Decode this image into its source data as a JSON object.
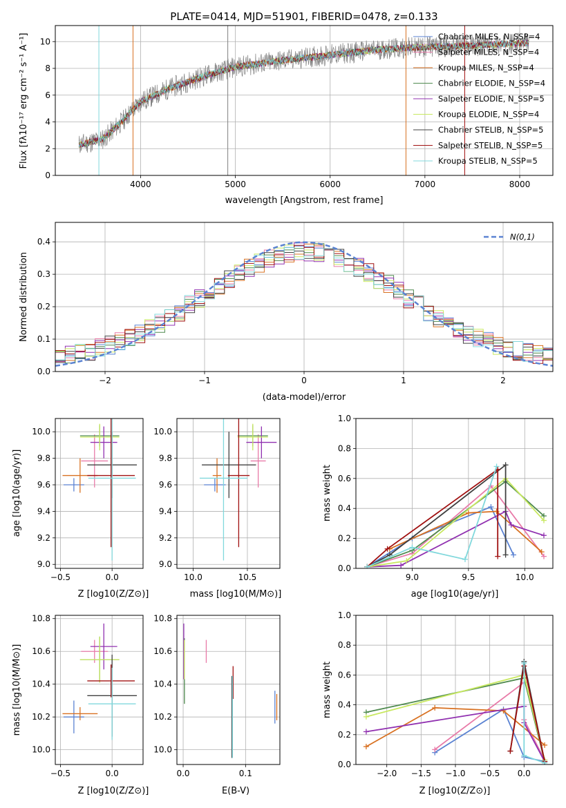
{
  "colors": {
    "chabrier_miles": "#5a82d2",
    "salpeter_miles": "#e87aa8",
    "kroupa_miles": "#d87020",
    "chabrier_elodie": "#4f8a4f",
    "salpeter_elodie": "#9030b0",
    "kroupa_elodie": "#c8e860",
    "chabrier_stelib": "#404040",
    "salpeter_stelib": "#a01010",
    "kroupa_stelib": "#80d8dc",
    "spectrum": "#808080",
    "gaussian": "#5a82d2"
  },
  "chart_data": [
    {
      "id": "spectrum",
      "type": "line",
      "title": "PLATE=0414, MJD=51901, FIBERID=0478, z=0.133",
      "xlabel": "wavelength [Angstrom, rest frame]",
      "ylabel": "Flux [fλ10⁻¹⁷ erg cm⁻² s⁻¹ A⁻¹]",
      "xlim": [
        3100,
        8350
      ],
      "ylim": [
        0,
        11.2
      ],
      "xticks": [
        4000,
        5000,
        6000,
        7000,
        8000
      ],
      "yticks": [
        0,
        2,
        4,
        6,
        8,
        10
      ],
      "x_range_data": [
        3350,
        8100
      ],
      "continuum": [
        [
          3350,
          2.3
        ],
        [
          3600,
          2.7
        ],
        [
          3800,
          4.0
        ],
        [
          4000,
          5.5
        ],
        [
          4300,
          6.5
        ],
        [
          4700,
          7.5
        ],
        [
          5000,
          8.1
        ],
        [
          5500,
          8.6
        ],
        [
          6000,
          9.0
        ],
        [
          6500,
          9.4
        ],
        [
          7000,
          9.6
        ],
        [
          7500,
          9.7
        ],
        [
          8100,
          9.9
        ]
      ],
      "legend": [
        "Chabrier MILES, N_SSP=4",
        "Salpeter MILES, N_SSP=4",
        "Kroupa MILES, N_SSP=4",
        "Chabrier ELODIE, N_SSP=4",
        "Salpeter ELODIE, N_SSP=5",
        "Kroupa ELODIE, N_SSP=4",
        "Chabrier STELIB, N_SSP=5",
        "Salpeter STELIB, N_SSP=5",
        "Kroupa STELIB, N_SSP=5"
      ],
      "legend_position": "top-right"
    },
    {
      "id": "residuals",
      "type": "histogram",
      "xlabel": "(data-model)/error",
      "ylabel": "Normed distribution",
      "xlim": [
        -2.5,
        2.5
      ],
      "ylim": [
        0,
        0.46
      ],
      "xticks": [
        -2,
        -1,
        0,
        1,
        2
      ],
      "yticks": [
        0.0,
        0.1,
        0.2,
        0.3,
        0.4
      ],
      "bin_width": 0.1,
      "legend": [
        "N(0,1)"
      ],
      "legend_position": "top-right"
    },
    {
      "id": "age_vs_Z",
      "type": "errorbar",
      "xlabel": "Z [log10(Z/Z⊙)]",
      "ylabel": "age  [log10(age/yr)]",
      "xlim": [
        -0.55,
        0.3
      ],
      "ylim": [
        8.97,
        10.1
      ],
      "xticks": [
        -0.5,
        0.0
      ],
      "yticks": [
        9.0,
        9.2,
        9.4,
        9.6,
        9.8,
        10.0
      ],
      "points": [
        {
          "model": "chabrier_miles",
          "x": -0.37,
          "xerr": 0.1,
          "y": 9.6,
          "yerr": 0.05
        },
        {
          "model": "salpeter_miles",
          "x": -0.17,
          "xerr": 0.13,
          "y": 9.78,
          "yerr": 0.2
        },
        {
          "model": "kroupa_miles",
          "x": -0.31,
          "xerr": 0.17,
          "y": 9.67,
          "yerr": 0.13
        },
        {
          "model": "chabrier_elodie",
          "x": -0.12,
          "xerr": 0.19,
          "y": 9.97,
          "yerr": 0.08
        },
        {
          "model": "salpeter_elodie",
          "x": -0.08,
          "xerr": 0.13,
          "y": 9.92,
          "yerr": 0.12
        },
        {
          "model": "kroupa_elodie",
          "x": -0.12,
          "xerr": 0.19,
          "y": 9.96,
          "yerr": 0.1
        },
        {
          "model": "chabrier_stelib",
          "x": 0.0,
          "xerr": 0.24,
          "y": 9.75,
          "yerr": 0.25
        },
        {
          "model": "salpeter_stelib",
          "x": -0.01,
          "xerr": 0.23,
          "y": 9.67,
          "yerr": 0.54
        },
        {
          "model": "kroupa_stelib",
          "x": 0.0,
          "xerr": 0.23,
          "y": 9.65,
          "yerr": 0.62
        }
      ]
    },
    {
      "id": "age_vs_mass",
      "type": "errorbar",
      "xlabel": "mass [log10(M/M⊙)]",
      "ylabel": "",
      "xlim": [
        9.85,
        10.8
      ],
      "ylim": [
        8.97,
        10.1
      ],
      "xticks": [
        10.0,
        10.5
      ],
      "yticks": [
        9.0,
        9.2,
        9.4,
        9.6,
        9.8,
        10.0
      ],
      "points": [
        {
          "model": "chabrier_miles",
          "x": 10.2,
          "xerr": 0.1,
          "y": 9.6,
          "yerr": 0.05
        },
        {
          "model": "salpeter_miles",
          "x": 10.6,
          "xerr": 0.07,
          "y": 9.78,
          "yerr": 0.2
        },
        {
          "model": "kroupa_miles",
          "x": 10.22,
          "xerr": 0.04,
          "y": 9.67,
          "yerr": 0.13
        },
        {
          "model": "chabrier_elodie",
          "x": 10.55,
          "xerr": 0.14,
          "y": 9.97,
          "yerr": 0.08
        },
        {
          "model": "salpeter_elodie",
          "x": 10.63,
          "xerr": 0.14,
          "y": 9.92,
          "yerr": 0.12
        },
        {
          "model": "kroupa_elodie",
          "x": 10.55,
          "xerr": 0.14,
          "y": 9.96,
          "yerr": 0.1
        },
        {
          "model": "chabrier_stelib",
          "x": 10.33,
          "xerr": 0.25,
          "y": 9.75,
          "yerr": 0.25
        },
        {
          "model": "salpeter_stelib",
          "x": 10.42,
          "xerr": 0.1,
          "y": 9.67,
          "yerr": 0.54
        },
        {
          "model": "kroupa_stelib",
          "x": 10.28,
          "xerr": 0.22,
          "y": 9.65,
          "yerr": 0.62
        }
      ]
    },
    {
      "id": "weight_vs_age",
      "type": "line",
      "xlabel": "age  [log10(age/yr)]",
      "ylabel": "mass weight",
      "xlim": [
        8.5,
        10.25
      ],
      "ylim": [
        0,
        1.0
      ],
      "xticks": [
        9.0,
        9.5,
        10.0
      ],
      "yticks": [
        0.0,
        0.2,
        0.4,
        0.6,
        0.8,
        1.0
      ],
      "series": [
        {
          "model": "chabrier_miles",
          "x": [
            8.6,
            9.0,
            9.7,
            9.9
          ],
          "y": [
            0.01,
            0.2,
            0.41,
            0.09
          ]
        },
        {
          "model": "salpeter_miles",
          "x": [
            8.6,
            9.0,
            9.7,
            10.17
          ],
          "y": [
            0.01,
            0.1,
            0.55,
            0.08
          ]
        },
        {
          "model": "kroupa_miles",
          "x": [
            8.8,
            9.5,
            9.75,
            10.15
          ],
          "y": [
            0.13,
            0.37,
            0.38,
            0.11
          ]
        },
        {
          "model": "chabrier_elodie",
          "x": [
            8.6,
            9.0,
            9.83,
            10.17
          ],
          "y": [
            0.01,
            0.12,
            0.58,
            0.35
          ]
        },
        {
          "model": "salpeter_elodie",
          "x": [
            8.6,
            8.9,
            9.83,
            9.88,
            10.17
          ],
          "y": [
            0.01,
            0.02,
            0.38,
            0.29,
            0.22
          ]
        },
        {
          "model": "kroupa_elodie",
          "x": [
            8.6,
            8.95,
            9.83,
            10.17
          ],
          "y": [
            0.01,
            0.05,
            0.6,
            0.32
          ]
        },
        {
          "model": "chabrier_stelib",
          "x": [
            8.6,
            8.8,
            9.83,
            9.83
          ],
          "y": [
            0.01,
            0.09,
            0.69,
            0.09
          ]
        },
        {
          "model": "salpeter_stelib",
          "x": [
            8.6,
            8.78,
            9.76,
            9.76
          ],
          "y": [
            0.01,
            0.13,
            0.66,
            0.08
          ]
        },
        {
          "model": "kroupa_stelib",
          "x": [
            8.6,
            9.0,
            9.47,
            9.75
          ],
          "y": [
            0.01,
            0.14,
            0.06,
            0.68
          ]
        }
      ]
    },
    {
      "id": "mass_vs_Z",
      "type": "errorbar",
      "xlabel": "Z [log10(Z/Z⊙)]",
      "ylabel": "mass [log10(M/M⊙)]",
      "xlim": [
        -0.55,
        0.3
      ],
      "ylim": [
        9.91,
        10.82
      ],
      "xticks": [
        -0.5,
        0.0
      ],
      "yticks": [
        10.0,
        10.2,
        10.4,
        10.6,
        10.8
      ],
      "points": [
        {
          "model": "chabrier_miles",
          "x": -0.37,
          "xerr": 0.1,
          "y": 10.2,
          "yerr": 0.1
        },
        {
          "model": "salpeter_miles",
          "x": -0.17,
          "xerr": 0.13,
          "y": 10.6,
          "yerr": 0.07
        },
        {
          "model": "kroupa_miles",
          "x": -0.31,
          "xerr": 0.17,
          "y": 10.22,
          "yerr": 0.04
        },
        {
          "model": "chabrier_elodie",
          "x": -0.12,
          "xerr": 0.19,
          "y": 10.55,
          "yerr": 0.14
        },
        {
          "model": "salpeter_elodie",
          "x": -0.08,
          "xerr": 0.13,
          "y": 10.63,
          "yerr": 0.14
        },
        {
          "model": "kroupa_elodie",
          "x": -0.12,
          "xerr": 0.19,
          "y": 10.55,
          "yerr": 0.14
        },
        {
          "model": "chabrier_stelib",
          "x": 0.0,
          "xerr": 0.24,
          "y": 10.33,
          "yerr": 0.25
        },
        {
          "model": "salpeter_stelib",
          "x": -0.01,
          "xerr": 0.23,
          "y": 10.42,
          "yerr": 0.1
        },
        {
          "model": "kroupa_stelib",
          "x": 0.0,
          "xerr": 0.23,
          "y": 10.28,
          "yerr": 0.22
        }
      ]
    },
    {
      "id": "mass_vs_ebv",
      "type": "errorbar",
      "xlabel": "E(B-V)",
      "ylabel": "",
      "xlim": [
        -0.01,
        0.155
      ],
      "ylim": [
        9.91,
        10.82
      ],
      "xticks": [
        0.0,
        0.1
      ],
      "yticks": [
        10.0,
        10.2,
        10.4,
        10.6,
        10.8
      ],
      "points": [
        {
          "model": "chabrier_miles",
          "x": 0.147,
          "xerr": 0,
          "y": 10.26,
          "yerr": 0.1
        },
        {
          "model": "salpeter_miles",
          "x": 0.037,
          "xerr": 0,
          "y": 10.6,
          "yerr": 0.07
        },
        {
          "model": "kroupa_miles",
          "x": 0.15,
          "xerr": 0,
          "y": 10.26,
          "yerr": 0.08
        },
        {
          "model": "chabrier_elodie",
          "x": 0.002,
          "xerr": 0,
          "y": 10.48,
          "yerr": 0.2
        },
        {
          "model": "salpeter_elodie",
          "x": 0.001,
          "xerr": 0,
          "y": 10.6,
          "yerr": 0.17
        },
        {
          "model": "kroupa_elodie",
          "x": 0.002,
          "xerr": 0,
          "y": 10.55,
          "yerr": 0.12
        },
        {
          "model": "chabrier_stelib",
          "x": 0.078,
          "xerr": 0,
          "y": 10.2,
          "yerr": 0.25
        },
        {
          "model": "salpeter_stelib",
          "x": 0.08,
          "xerr": 0,
          "y": 10.41,
          "yerr": 0.1
        },
        {
          "model": "kroupa_stelib",
          "x": 0.079,
          "xerr": 0,
          "y": 10.2,
          "yerr": 0.25
        }
      ]
    },
    {
      "id": "weight_vs_Z",
      "type": "line",
      "xlabel": "Z [log10(Z/Z⊙)]",
      "ylabel": "mass weight",
      "xlim": [
        -2.45,
        0.42
      ],
      "ylim": [
        0,
        1.0
      ],
      "xticks": [
        -2.0,
        -1.5,
        -1.0,
        -0.5,
        0.0
      ],
      "yticks": [
        0.0,
        0.2,
        0.4,
        0.6,
        0.8,
        1.0
      ],
      "series": [
        {
          "model": "chabrier_miles",
          "x": [
            -1.3,
            -0.3,
            0.0,
            0.3
          ],
          "y": [
            0.08,
            0.37,
            0.05,
            0.02
          ]
        },
        {
          "model": "salpeter_miles",
          "x": [
            -1.3,
            0.0,
            0.0,
            0.3
          ],
          "y": [
            0.1,
            0.55,
            0.3,
            0.03
          ]
        },
        {
          "model": "kroupa_miles",
          "x": [
            -2.3,
            -1.3,
            -0.3,
            0.3
          ],
          "y": [
            0.12,
            0.38,
            0.36,
            0.13
          ]
        },
        {
          "model": "chabrier_elodie",
          "x": [
            -2.3,
            0.0,
            0.3
          ],
          "y": [
            0.35,
            0.58,
            0.02
          ]
        },
        {
          "model": "salpeter_elodie",
          "x": [
            -2.3,
            0.0,
            0.0,
            0.3
          ],
          "y": [
            0.22,
            0.39,
            0.28,
            0.02
          ]
        },
        {
          "model": "kroupa_elodie",
          "x": [
            -2.3,
            0.0,
            0.3
          ],
          "y": [
            0.32,
            0.6,
            0.03
          ]
        },
        {
          "model": "chabrier_stelib",
          "x": [
            -0.2,
            0.0,
            0.3
          ],
          "y": [
            0.09,
            0.69,
            0.02
          ]
        },
        {
          "model": "salpeter_stelib",
          "x": [
            -0.2,
            0.0,
            0.3
          ],
          "y": [
            0.09,
            0.66,
            0.02
          ]
        },
        {
          "model": "kroupa_stelib",
          "x": [
            0.0,
            0.0,
            0.3
          ],
          "y": [
            0.68,
            0.06,
            0.01
          ]
        }
      ]
    }
  ]
}
